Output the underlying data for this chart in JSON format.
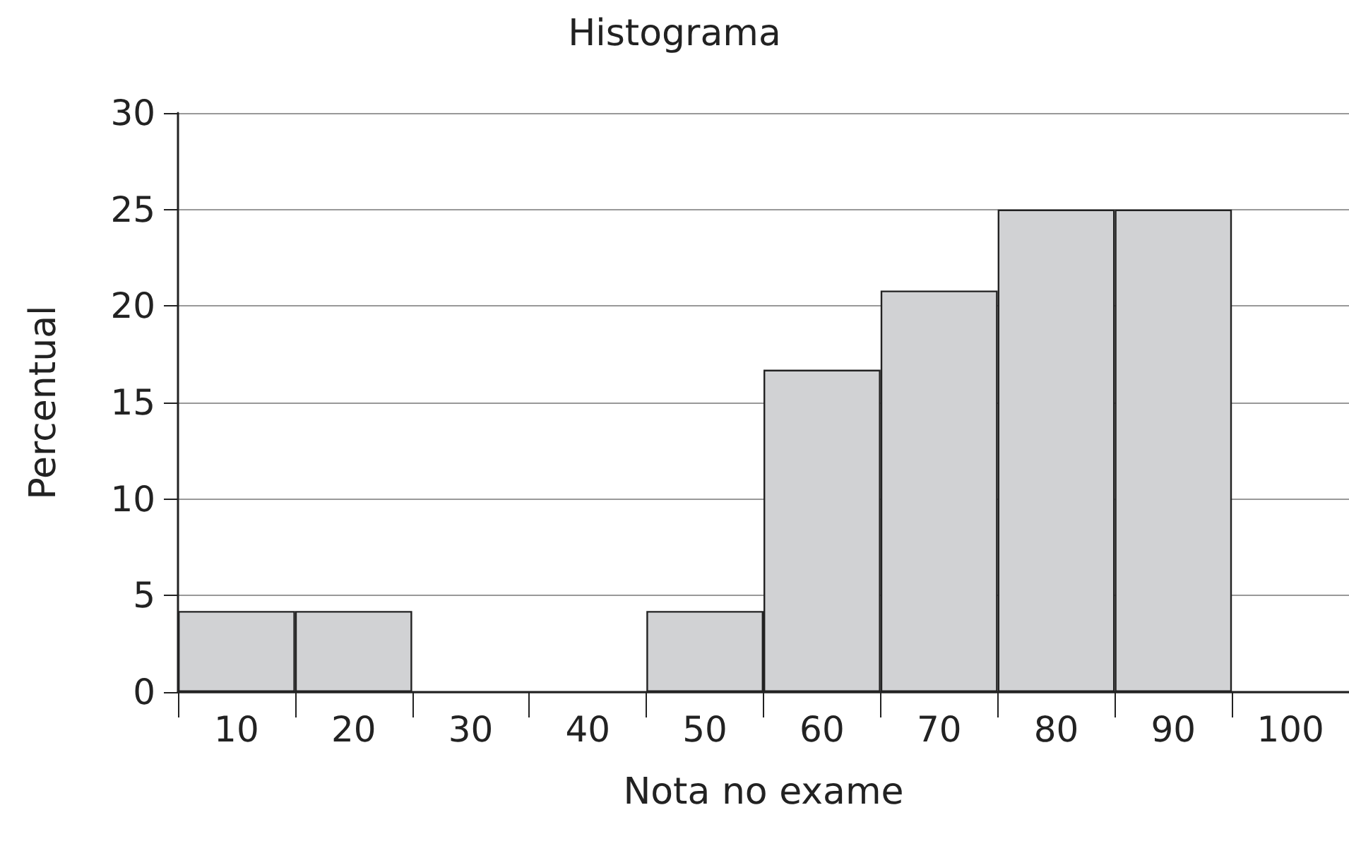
{
  "chart_data": {
    "type": "bar",
    "title": "Histograma",
    "xlabel": "Nota no exame",
    "ylabel": "Percentual",
    "categories": [
      "10",
      "20",
      "30",
      "40",
      "50",
      "60",
      "70",
      "80",
      "90",
      "100"
    ],
    "values": [
      4.2,
      4.2,
      0,
      0,
      4.2,
      16.7,
      20.8,
      25,
      25,
      0
    ],
    "color": "#d1d2d4",
    "ylim": [
      0,
      30
    ],
    "yticks": [
      0,
      5,
      10,
      15,
      20,
      25,
      30
    ],
    "grid": "y"
  }
}
